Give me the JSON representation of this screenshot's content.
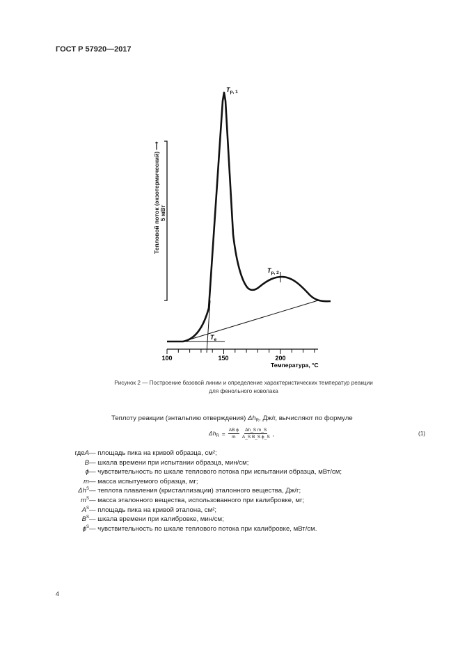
{
  "header": {
    "standard": "ГОСТ Р 57920—2017"
  },
  "figure": {
    "y_axis_label": "Тепловой поток (экзотермический) ⟶",
    "scale_label": "5 мВт",
    "x_axis_label": "Температура, °С",
    "x_ticks": [
      "100",
      "150",
      "200"
    ],
    "peak1_label": "T",
    "peak1_sub": "p, 1",
    "peak2_label": "T",
    "peak2_sub": "p, 2",
    "onset_label": "T",
    "onset_sub": "e",
    "caption_line1": "Рисунок 2 — Построение базовой линии и определение характеристических температур реакции",
    "caption_line2": "для фенольного новолака"
  },
  "text": {
    "intro_a": "Теплоту реакции (энтальпию отверждения) ",
    "intro_sym": "Δh",
    "intro_sub": "R",
    "intro_b": ", Дж/г, вычисляют по формуле",
    "formula_lhs": "Δh",
    "formula_lhs_sub": "R",
    "formula_eq": "=",
    "frac1_num": "AB ϕ",
    "frac1_den": "m",
    "frac2_num": "Δh_S m_S",
    "frac2_den": "A_S B_S ϕ_S",
    "formula_end": ",",
    "equation_number": "(1)"
  },
  "definitions": [
    {
      "prefix": "где ",
      "sym": "A",
      "sub": "",
      "desc": " — площадь пика на кривой образца, см²;"
    },
    {
      "prefix": "",
      "sym": "B",
      "sub": "",
      "desc": " — шкала времени при испытании образца, мин/см;"
    },
    {
      "prefix": "",
      "sym": "ϕ",
      "sub": "",
      "desc": " — чувствительность по шкале теплового потока при испытании образца, мВт/см;"
    },
    {
      "prefix": "",
      "sym": "m",
      "sub": "",
      "desc": " — масса испытуемого образца, мг;"
    },
    {
      "prefix": "",
      "sym": "Δh",
      "sub": "S",
      "desc": " — теплота плавления (кристаллизации) эталонного вещества, Дж/г;"
    },
    {
      "prefix": "",
      "sym": "m",
      "sub": "S",
      "desc": " — масса эталонного вещества, использованного при калибровке, мг;"
    },
    {
      "prefix": "",
      "sym": "A",
      "sub": "S",
      "desc": " — площадь пика на кривой эталона, см²;"
    },
    {
      "prefix": "",
      "sym": "B",
      "sub": "S",
      "desc": " — шкала времени при калибровке, мин/см;"
    },
    {
      "prefix": "",
      "sym": "ϕ",
      "sub": "S",
      "desc": " — чувствительность по шкале теплового потока при калибровке, мВт/см."
    }
  ],
  "footer": {
    "page_number": "4"
  }
}
